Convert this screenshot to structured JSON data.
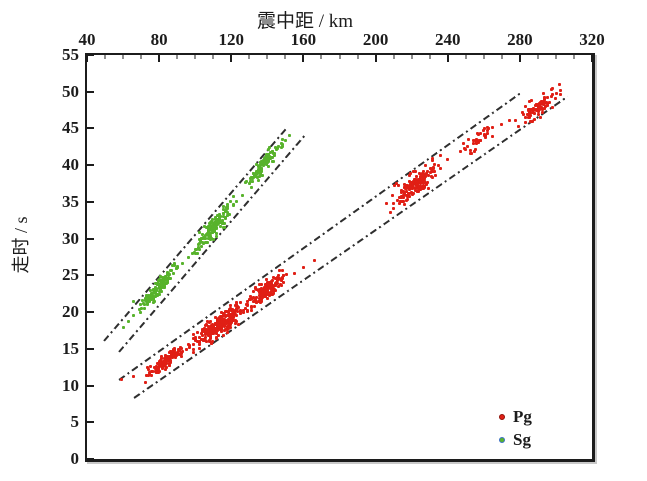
{
  "chart_data": {
    "type": "scatter",
    "title": "",
    "xlabel": "震中距 / km",
    "ylabel": "走时 / s",
    "xlim": [
      40,
      320
    ],
    "ylim": [
      0,
      55
    ],
    "x_ticks": [
      40,
      80,
      120,
      160,
      200,
      240,
      280,
      320
    ],
    "x_minor_step": 10,
    "y_ticks": [
      0,
      5,
      10,
      15,
      20,
      25,
      30,
      35,
      40,
      45,
      50,
      55
    ],
    "grid": false,
    "axis_color": "#1c1c1c",
    "trend_line_color": "#2f2f2f",
    "trend_line_style": "dash-dot",
    "series": [
      {
        "name": "Pg",
        "color": "#e01f15",
        "legend_ring_color": "#8f1008",
        "trend_slope_s_per_km": 0.172,
        "clusters": [
          {
            "x": 84,
            "y": 13.4,
            "n": 130,
            "sx": 5.5,
            "sy": 0.45
          },
          {
            "x": 114,
            "y": 18.3,
            "n": 260,
            "sx": 6.5,
            "sy": 0.75
          },
          {
            "x": 140,
            "y": 23.1,
            "n": 150,
            "sx": 4.5,
            "sy": 0.6
          },
          {
            "x": 222,
            "y": 37.4,
            "n": 160,
            "sx": 6.0,
            "sy": 0.8
          },
          {
            "x": 257,
            "y": 43.6,
            "n": 40,
            "sx": 3.5,
            "sy": 0.6
          },
          {
            "x": 290,
            "y": 47.8,
            "n": 85,
            "sx": 5.5,
            "sy": 0.7
          }
        ],
        "sparse": [
          [
            59,
            10.8
          ],
          [
            66,
            11.2
          ],
          [
            96,
            15.6
          ],
          [
            100,
            16.2
          ],
          [
            104,
            16.8
          ],
          [
            131,
            20.8
          ],
          [
            134,
            21.3
          ],
          [
            155,
            25.2
          ],
          [
            160,
            26.1
          ],
          [
            166,
            27.0
          ],
          [
            206,
            34.8
          ],
          [
            240,
            40.8
          ],
          [
            247,
            41.9
          ],
          [
            270,
            45.6
          ],
          [
            274,
            46.1
          ]
        ]
      },
      {
        "name": "Sg",
        "color": "#58b32c",
        "legend_ring_color": "#3a6fc4",
        "trend_slope_s_per_km": 0.286,
        "clusters": [
          {
            "x": 80,
            "y": 23.4,
            "n": 130,
            "sx": 4.5,
            "sy": 0.5
          },
          {
            "x": 110,
            "y": 31.4,
            "n": 140,
            "sx": 5.0,
            "sy": 0.7
          },
          {
            "x": 138,
            "y": 40.1,
            "n": 120,
            "sx": 4.5,
            "sy": 0.6
          }
        ],
        "sparse": [
          [
            60,
            17.9
          ],
          [
            63,
            18.7
          ],
          [
            66,
            19.6
          ],
          [
            69,
            20.3
          ],
          [
            72,
            21.0
          ],
          [
            66,
            21.4
          ],
          [
            93,
            26.6
          ],
          [
            96,
            27.4
          ],
          [
            123,
            35.1
          ],
          [
            126,
            35.9
          ],
          [
            150,
            43.4
          ],
          [
            152,
            44.0
          ]
        ]
      }
    ],
    "corridor_lines": [
      {
        "series": "Pg",
        "from": [
          57.6,
          10.9
        ],
        "to": [
          280.5,
          50.0
        ]
      },
      {
        "series": "Pg",
        "from": [
          65.8,
          8.4
        ],
        "to": [
          306.0,
          49.4
        ]
      },
      {
        "series": "Sg",
        "from": [
          49.3,
          16.2
        ],
        "to": [
          151.0,
          45.3
        ]
      },
      {
        "series": "Sg",
        "from": [
          57.6,
          14.7
        ],
        "to": [
          161.0,
          44.3
        ]
      }
    ],
    "legend": {
      "position": "bottom-right",
      "entries": [
        "Pg",
        "Sg"
      ]
    }
  }
}
